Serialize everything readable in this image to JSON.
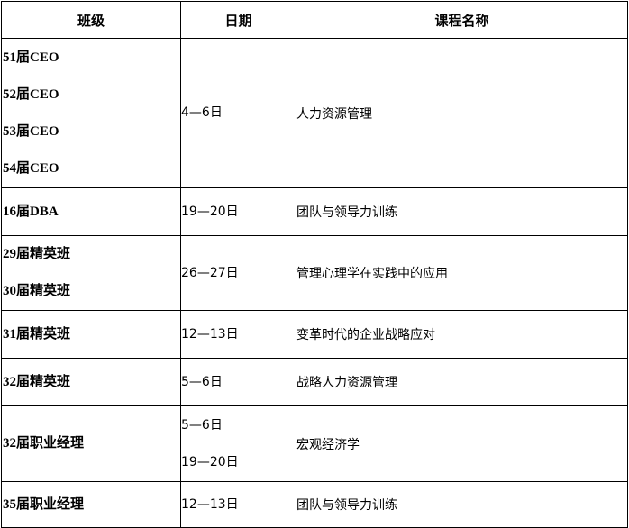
{
  "headers": {
    "class": "班级",
    "date": "日期",
    "course": "课程名称"
  },
  "rows": [
    {
      "classes": [
        "51届CEO",
        "52届CEO",
        "53届CEO",
        "54届CEO"
      ],
      "dates": [
        "4—6日"
      ],
      "course": "人力资源管理"
    },
    {
      "classes": [
        "16届DBA"
      ],
      "dates": [
        "19—20日"
      ],
      "course": "团队与领导力训练"
    },
    {
      "classes": [
        "29届精英班",
        "30届精英班"
      ],
      "dates": [
        "26—27日"
      ],
      "course": "管理心理学在实践中的应用"
    },
    {
      "classes": [
        "31届精英班"
      ],
      "dates": [
        "12—13日"
      ],
      "course": "变革时代的企业战略应对"
    },
    {
      "classes": [
        "32届精英班"
      ],
      "dates": [
        "5—6日"
      ],
      "course": "战略人力资源管理"
    },
    {
      "classes": [
        "32届职业经理"
      ],
      "dates": [
        "5—6日",
        "19—20日"
      ],
      "course": "宏观经济学"
    },
    {
      "classes": [
        "35届职业经理"
      ],
      "dates": [
        "12—13日"
      ],
      "course": "团队与领导力训练"
    }
  ]
}
